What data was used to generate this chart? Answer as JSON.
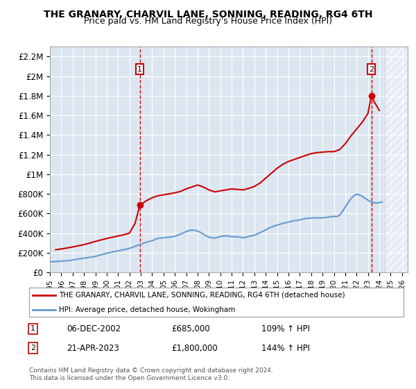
{
  "title": "THE GRANARY, CHARVIL LANE, SONNING, READING, RG4 6TH",
  "subtitle": "Price paid vs. HM Land Registry's House Price Index (HPI)",
  "xlabel": "",
  "ylabel": "",
  "xlim_start": 1995.0,
  "xlim_end": 2026.5,
  "ylim": [
    0,
    2300000
  ],
  "yticks": [
    0,
    200000,
    400000,
    600000,
    800000,
    1000000,
    1200000,
    1400000,
    1600000,
    1800000,
    2000000,
    2200000
  ],
  "ytick_labels": [
    "£0",
    "£200K",
    "£400K",
    "£600K",
    "£800K",
    "£1M",
    "£1.2M",
    "£1.4M",
    "£1.6M",
    "£1.8M",
    "£2M",
    "£2.2M"
  ],
  "xticks": [
    1995,
    1996,
    1997,
    1998,
    1999,
    2000,
    2001,
    2002,
    2003,
    2004,
    2005,
    2006,
    2007,
    2008,
    2009,
    2010,
    2011,
    2012,
    2013,
    2014,
    2015,
    2016,
    2017,
    2018,
    2019,
    2020,
    2021,
    2022,
    2023,
    2024,
    2025,
    2026
  ],
  "bg_color": "#dce6f1",
  "hatch_color": "#c0d0e8",
  "plot_bg": "#dce6f1",
  "red_line_color": "#cc0000",
  "blue_line_color": "#6699cc",
  "marker1_date": 2002.92,
  "marker1_value": 685000,
  "marker2_date": 2023.3,
  "marker2_value": 1800000,
  "legend_label_red": "THE GRANARY, CHARVIL LANE, SONNING, READING, RG4 6TH (detached house)",
  "legend_label_blue": "HPI: Average price, detached house, Wokingham",
  "annotation1_label": "1",
  "annotation2_label": "2",
  "note1_box": "1",
  "note1_date": "06-DEC-2002",
  "note1_price": "£685,000",
  "note1_hpi": "109% ↑ HPI",
  "note2_box": "2",
  "note2_date": "21-APR-2023",
  "note2_price": "£1,800,000",
  "note2_hpi": "144% ↑ HPI",
  "footer": "Contains HM Land Registry data © Crown copyright and database right 2024.\nThis data is licensed under the Open Government Licence v3.0.",
  "hpi_data_x": [
    1995.0,
    1995.25,
    1995.5,
    1995.75,
    1996.0,
    1996.25,
    1996.5,
    1996.75,
    1997.0,
    1997.25,
    1997.5,
    1997.75,
    1998.0,
    1998.25,
    1998.5,
    1998.75,
    1999.0,
    1999.25,
    1999.5,
    1999.75,
    2000.0,
    2000.25,
    2000.5,
    2000.75,
    2001.0,
    2001.25,
    2001.5,
    2001.75,
    2002.0,
    2002.25,
    2002.5,
    2002.75,
    2003.0,
    2003.25,
    2003.5,
    2003.75,
    2004.0,
    2004.25,
    2004.5,
    2004.75,
    2005.0,
    2005.25,
    2005.5,
    2005.75,
    2006.0,
    2006.25,
    2006.5,
    2006.75,
    2007.0,
    2007.25,
    2007.5,
    2007.75,
    2008.0,
    2008.25,
    2008.5,
    2008.75,
    2009.0,
    2009.25,
    2009.5,
    2009.75,
    2010.0,
    2010.25,
    2010.5,
    2010.75,
    2011.0,
    2011.25,
    2011.5,
    2011.75,
    2012.0,
    2012.25,
    2012.5,
    2012.75,
    2013.0,
    2013.25,
    2013.5,
    2013.75,
    2014.0,
    2014.25,
    2014.5,
    2014.75,
    2015.0,
    2015.25,
    2015.5,
    2015.75,
    2016.0,
    2016.25,
    2016.5,
    2016.75,
    2017.0,
    2017.25,
    2017.5,
    2017.75,
    2018.0,
    2018.25,
    2018.5,
    2018.75,
    2019.0,
    2019.25,
    2019.5,
    2019.75,
    2020.0,
    2020.25,
    2020.5,
    2020.75,
    2021.0,
    2021.25,
    2021.5,
    2021.75,
    2022.0,
    2022.25,
    2022.5,
    2022.75,
    2023.0,
    2023.25,
    2023.5,
    2023.75,
    2024.0,
    2024.25
  ],
  "hpi_data_y": [
    107000,
    108000,
    110000,
    112000,
    114000,
    116000,
    118000,
    121000,
    126000,
    131000,
    136000,
    140000,
    144000,
    148000,
    153000,
    157000,
    162000,
    170000,
    178000,
    186000,
    194000,
    200000,
    207000,
    213000,
    218000,
    224000,
    230000,
    236000,
    244000,
    254000,
    265000,
    276000,
    286000,
    296000,
    307000,
    315000,
    322000,
    335000,
    345000,
    350000,
    352000,
    355000,
    358000,
    361000,
    368000,
    378000,
    390000,
    402000,
    415000,
    425000,
    430000,
    428000,
    420000,
    408000,
    390000,
    372000,
    358000,
    352000,
    350000,
    355000,
    365000,
    370000,
    372000,
    368000,
    362000,
    363000,
    362000,
    358000,
    352000,
    358000,
    365000,
    372000,
    378000,
    390000,
    405000,
    418000,
    432000,
    448000,
    462000,
    472000,
    480000,
    490000,
    498000,
    505000,
    512000,
    520000,
    526000,
    528000,
    535000,
    542000,
    548000,
    550000,
    553000,
    556000,
    556000,
    554000,
    555000,
    558000,
    562000,
    568000,
    570000,
    568000,
    580000,
    620000,
    665000,
    710000,
    750000,
    780000,
    795000,
    790000,
    775000,
    755000,
    735000,
    720000,
    710000,
    705000,
    710000,
    718000
  ],
  "red_data_x": [
    1995.5,
    1996.0,
    1996.5,
    1997.0,
    1997.5,
    1998.0,
    1998.5,
    1999.0,
    1999.5,
    2000.0,
    2000.5,
    2001.0,
    2001.5,
    2002.0,
    2002.5,
    2002.92,
    2003.5,
    2004.0,
    2004.5,
    2005.0,
    2005.5,
    2006.0,
    2006.5,
    2007.0,
    2007.5,
    2008.0,
    2008.5,
    2009.0,
    2009.5,
    2010.0,
    2010.5,
    2011.0,
    2011.5,
    2012.0,
    2012.5,
    2013.0,
    2013.5,
    2014.0,
    2014.5,
    2015.0,
    2015.5,
    2016.0,
    2016.5,
    2017.0,
    2017.5,
    2018.0,
    2018.5,
    2019.0,
    2019.5,
    2020.0,
    2020.5,
    2021.0,
    2021.5,
    2022.0,
    2022.5,
    2023.0,
    2023.3,
    2023.5,
    2024.0
  ],
  "red_data_y": [
    230000,
    238000,
    248000,
    258000,
    270000,
    282000,
    298000,
    315000,
    330000,
    345000,
    358000,
    370000,
    382000,
    400000,
    500000,
    685000,
    730000,
    760000,
    780000,
    790000,
    800000,
    810000,
    825000,
    850000,
    870000,
    890000,
    870000,
    840000,
    820000,
    830000,
    840000,
    850000,
    845000,
    840000,
    855000,
    875000,
    910000,
    960000,
    1010000,
    1060000,
    1100000,
    1130000,
    1150000,
    1170000,
    1190000,
    1210000,
    1220000,
    1225000,
    1230000,
    1230000,
    1250000,
    1310000,
    1390000,
    1460000,
    1530000,
    1620000,
    1800000,
    1750000,
    1650000
  ]
}
